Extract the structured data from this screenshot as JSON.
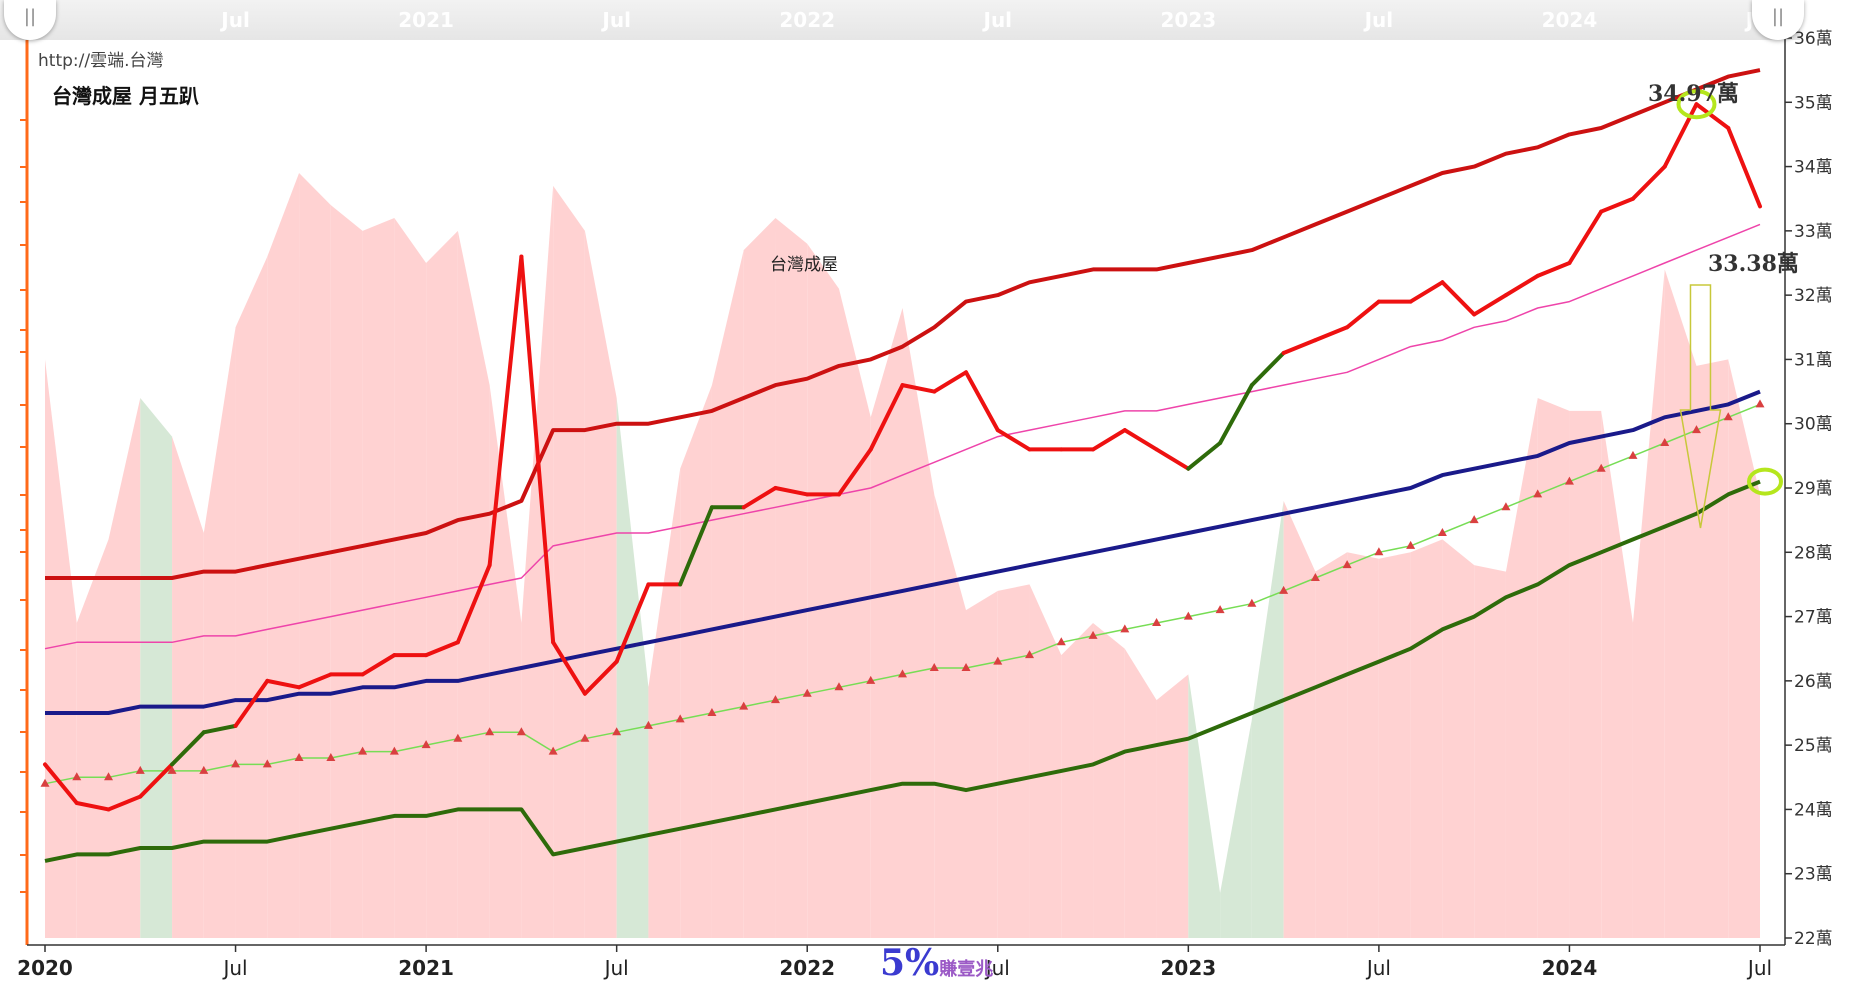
{
  "url_text": "http://雲端.台灣",
  "title": "台灣成屋 月五趴",
  "series_label": "台灣成屋",
  "annotations": {
    "peak": "34.97萬",
    "current": "33.38萬"
  },
  "watermark": {
    "big": "5%",
    "small": "賺壹兆"
  },
  "navigator": {
    "years": [
      "2020",
      "2021",
      "2022",
      "2023",
      "2024"
    ],
    "mid_label": "Jul"
  },
  "handles": {
    "left": "||",
    "right": "||"
  },
  "colors": {
    "price": "#ee1111",
    "upper_band": "#cc1111",
    "mid_band": "#ee44aa",
    "trend": "#1a1a8a",
    "lower_band": "#2e6b0a",
    "target": "#77dd55",
    "target_marker": "#d94040",
    "area_pos": "#ffd2d2",
    "area_neg": "#d6e8d6",
    "axis": "#ff6a1a",
    "highlight": "#b5e61d"
  },
  "chart_data": {
    "type": "line",
    "x_unit": "month",
    "x_start": "2020-01",
    "x_end": "2024-07",
    "x_ticks": [
      {
        "date": "2020-01",
        "label": "2020"
      },
      {
        "date": "2020-07",
        "label": "Jul"
      },
      {
        "date": "2021-01",
        "label": "2021"
      },
      {
        "date": "2021-07",
        "label": "Jul"
      },
      {
        "date": "2022-01",
        "label": "2022"
      },
      {
        "date": "2022-07",
        "label": "Jul"
      },
      {
        "date": "2023-01",
        "label": "2023"
      },
      {
        "date": "2023-07",
        "label": "Jul"
      },
      {
        "date": "2024-01",
        "label": "2024"
      },
      {
        "date": "2024-07",
        "label": "Jul"
      }
    ],
    "ylim": [
      22,
      36
    ],
    "y_ticks": [
      "22萬",
      "23萬",
      "24萬",
      "25萬",
      "26萬",
      "27萬",
      "28萬",
      "29萬",
      "30萬",
      "31萬",
      "32萬",
      "33萬",
      "34萬",
      "35萬",
      "36萬"
    ],
    "series": [
      {
        "role": "area",
        "values": [
          31.0,
          26.9,
          28.2,
          30.4,
          29.8,
          28.3,
          31.5,
          32.6,
          33.9,
          33.4,
          33.0,
          33.2,
          32.5,
          33.0,
          30.6,
          26.9,
          33.7,
          33.0,
          30.4,
          25.9,
          29.3,
          30.6,
          32.7,
          33.2,
          32.8,
          32.1,
          30.1,
          31.8,
          28.9,
          27.1,
          27.4,
          27.5,
          26.4,
          26.9,
          26.5,
          25.7,
          26.1,
          22.7,
          25.4,
          28.8,
          27.7,
          28.0,
          27.9,
          28.0,
          28.2,
          27.8,
          27.7,
          30.4,
          30.2,
          30.2,
          26.9,
          32.4,
          30.9,
          31.0,
          28.9
        ]
      },
      {
        "role": "upper_band",
        "values": [
          27.6,
          27.6,
          27.6,
          27.6,
          27.6,
          27.7,
          27.7,
          27.8,
          27.9,
          28.0,
          28.1,
          28.2,
          28.3,
          28.5,
          28.6,
          28.8,
          29.9,
          29.9,
          30.0,
          30.0,
          30.1,
          30.2,
          30.4,
          30.6,
          30.7,
          30.9,
          31.0,
          31.2,
          31.5,
          31.9,
          32.0,
          32.2,
          32.3,
          32.4,
          32.4,
          32.4,
          32.5,
          32.6,
          32.7,
          32.9,
          33.1,
          33.3,
          33.5,
          33.7,
          33.9,
          34.0,
          34.2,
          34.3,
          34.5,
          34.6,
          34.8,
          35.0,
          35.2,
          35.4,
          35.5
        ]
      },
      {
        "role": "mid_band",
        "values": [
          26.5,
          26.6,
          26.6,
          26.6,
          26.6,
          26.7,
          26.7,
          26.8,
          26.9,
          27.0,
          27.1,
          27.2,
          27.3,
          27.4,
          27.5,
          27.6,
          28.1,
          28.2,
          28.3,
          28.3,
          28.4,
          28.5,
          28.6,
          28.7,
          28.8,
          28.9,
          29.0,
          29.2,
          29.4,
          29.6,
          29.8,
          29.9,
          30.0,
          30.1,
          30.2,
          30.2,
          30.3,
          30.4,
          30.5,
          30.6,
          30.7,
          30.8,
          31.0,
          31.2,
          31.3,
          31.5,
          31.6,
          31.8,
          31.9,
          32.1,
          32.3,
          32.5,
          32.7,
          32.9,
          33.1
        ]
      },
      {
        "role": "trend",
        "values": [
          25.5,
          25.5,
          25.5,
          25.6,
          25.6,
          25.6,
          25.7,
          25.7,
          25.8,
          25.8,
          25.9,
          25.9,
          26.0,
          26.0,
          26.1,
          26.2,
          26.3,
          26.4,
          26.5,
          26.6,
          26.7,
          26.8,
          26.9,
          27.0,
          27.1,
          27.2,
          27.3,
          27.4,
          27.5,
          27.6,
          27.7,
          27.8,
          27.9,
          28.0,
          28.1,
          28.2,
          28.3,
          28.4,
          28.5,
          28.6,
          28.7,
          28.8,
          28.9,
          29.0,
          29.2,
          29.3,
          29.4,
          29.5,
          29.7,
          29.8,
          29.9,
          30.1,
          30.2,
          30.3,
          30.5
        ]
      },
      {
        "role": "price",
        "values": [
          24.7,
          24.1,
          24.0,
          24.2,
          24.7,
          25.2,
          25.3,
          26.0,
          25.9,
          26.1,
          26.1,
          26.4,
          26.4,
          26.6,
          27.8,
          32.6,
          26.6,
          25.8,
          26.3,
          27.5,
          27.5,
          28.7,
          28.7,
          29.0,
          28.9,
          28.9,
          29.6,
          30.6,
          30.5,
          30.8,
          29.9,
          29.6,
          29.6,
          29.6,
          29.9,
          29.6,
          29.3,
          29.7,
          30.6,
          31.1,
          31.3,
          31.5,
          31.9,
          31.9,
          32.2,
          31.7,
          32.0,
          32.3,
          32.5,
          33.3,
          33.5,
          34.0,
          34.97,
          34.6,
          33.38
        ]
      },
      {
        "role": "lower_band",
        "values": [
          23.2,
          23.3,
          23.3,
          23.4,
          23.4,
          23.5,
          23.5,
          23.5,
          23.6,
          23.7,
          23.8,
          23.9,
          23.9,
          24.0,
          24.0,
          24.0,
          23.3,
          23.4,
          23.5,
          23.6,
          23.7,
          23.8,
          23.9,
          24.0,
          24.1,
          24.2,
          24.3,
          24.4,
          24.4,
          24.3,
          24.4,
          24.5,
          24.6,
          24.7,
          24.9,
          25.0,
          25.1,
          25.3,
          25.5,
          25.7,
          25.9,
          26.1,
          26.3,
          26.5,
          26.8,
          27.0,
          27.3,
          27.5,
          27.8,
          28.0,
          28.2,
          28.4,
          28.6,
          28.9,
          29.1
        ]
      },
      {
        "role": "target",
        "values": [
          24.4,
          24.5,
          24.5,
          24.6,
          24.6,
          24.6,
          24.7,
          24.7,
          24.8,
          24.8,
          24.9,
          24.9,
          25.0,
          25.1,
          25.2,
          25.2,
          24.9,
          25.1,
          25.2,
          25.3,
          25.4,
          25.5,
          25.6,
          25.7,
          25.8,
          25.9,
          26.0,
          26.1,
          26.2,
          26.2,
          26.3,
          26.4,
          26.6,
          26.7,
          26.8,
          26.9,
          27.0,
          27.1,
          27.2,
          27.4,
          27.6,
          27.8,
          28.0,
          28.1,
          28.3,
          28.5,
          28.7,
          28.9,
          29.1,
          29.3,
          29.5,
          29.7,
          29.9,
          30.1,
          30.3
        ]
      }
    ]
  }
}
